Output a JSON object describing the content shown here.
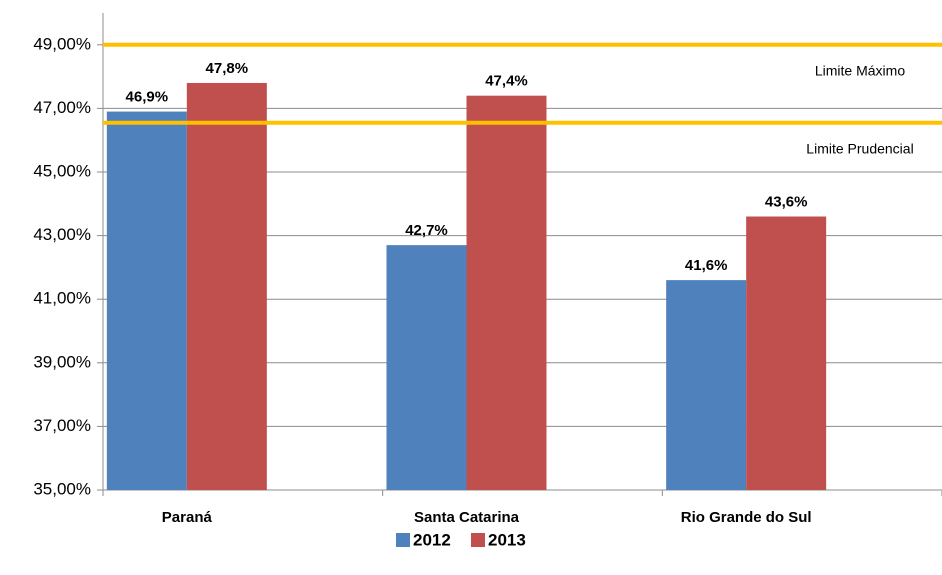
{
  "chart_data": {
    "type": "bar",
    "categories": [
      "Paraná",
      "Santa Catarina",
      "Rio Grande do Sul"
    ],
    "series": [
      {
        "name": "2012",
        "color": "#4f81bd",
        "values": [
          46.9,
          42.7,
          41.6
        ],
        "value_labels": [
          "46,9%",
          "42,7%",
          "41,6%"
        ]
      },
      {
        "name": "2013",
        "color": "#c0504d",
        "values": [
          47.8,
          47.4,
          43.6
        ],
        "value_labels": [
          "47,8%",
          "47,4%",
          "43,6%"
        ]
      }
    ],
    "ylim": [
      35,
      50
    ],
    "yticks": [
      {
        "value": 35,
        "label": "35,00%"
      },
      {
        "value": 37,
        "label": "37,00%"
      },
      {
        "value": 39,
        "label": "39,00%"
      },
      {
        "value": 41,
        "label": "41,00%"
      },
      {
        "value": 43,
        "label": "43,00%"
      },
      {
        "value": 45,
        "label": "45,00%"
      },
      {
        "value": 47,
        "label": "47,00%"
      },
      {
        "value": 49,
        "label": "49,00%"
      }
    ],
    "grid": true,
    "legend": "bottom",
    "reference_lines": [
      {
        "value": 49,
        "label": "Limite Máximo",
        "color": "#ffc000"
      },
      {
        "value": 46.55,
        "label": "Limite Prudencial",
        "color": "#ffc000"
      }
    ]
  }
}
